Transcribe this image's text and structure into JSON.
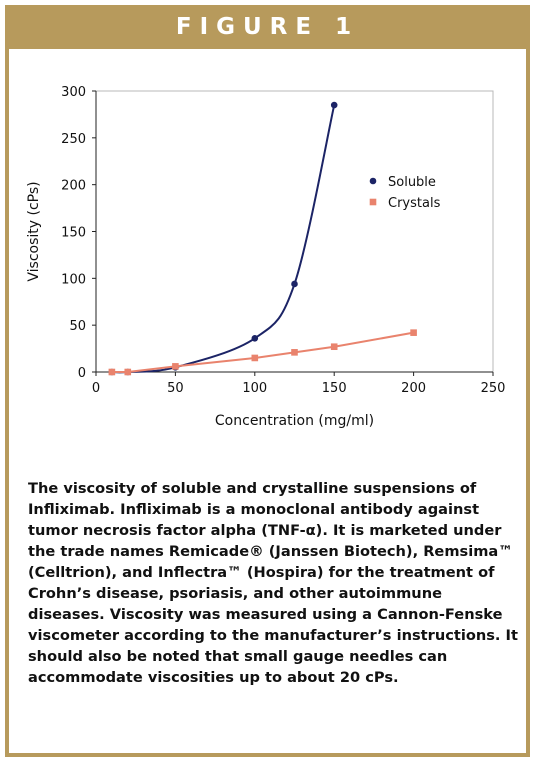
{
  "header": {
    "title": "FIGURE 1"
  },
  "chart_data": {
    "type": "line",
    "title": "",
    "xlabel": "Concentration (mg/ml)",
    "ylabel": "Viscosity (cPs)",
    "xlim": [
      0,
      250
    ],
    "ylim": [
      0,
      300
    ],
    "xticks": [
      "0",
      "50",
      "100",
      "150",
      "200",
      "250"
    ],
    "yticks": [
      "0",
      "50",
      "100",
      "150",
      "200",
      "250",
      "300"
    ],
    "grid": false,
    "legend_position": "right",
    "series": [
      {
        "name": "Soluble",
        "color": "#1c2466",
        "marker": "circle",
        "x": [
          10,
          20,
          50,
          100,
          125,
          150
        ],
        "y": [
          0,
          0,
          5,
          36,
          94,
          285
        ]
      },
      {
        "name": "Crystals",
        "color": "#e9836d",
        "marker": "square",
        "x": [
          10,
          20,
          50,
          100,
          125,
          150,
          200
        ],
        "y": [
          0,
          0,
          6,
          15,
          21,
          27,
          42
        ]
      }
    ]
  },
  "caption": {
    "text": "The viscosity of soluble and crystalline suspensions of Infliximab. Infliximab is a monoclonal antibody against tumor necrosis factor alpha (TNF-α). It is marketed under the trade names Remicade® (Janssen Biotech), Remsima™ (Celltrion), and Inflectra™ (Hospira) for the treatment of Crohn’s disease, psoriasis, and other autoimmune diseases. Viscosity was measured using a Cannon-Fenske viscometer according to the manufacturer’s instructions. It should also be noted that small gauge needles can accommodate viscosities up to about 20 cPs."
  }
}
